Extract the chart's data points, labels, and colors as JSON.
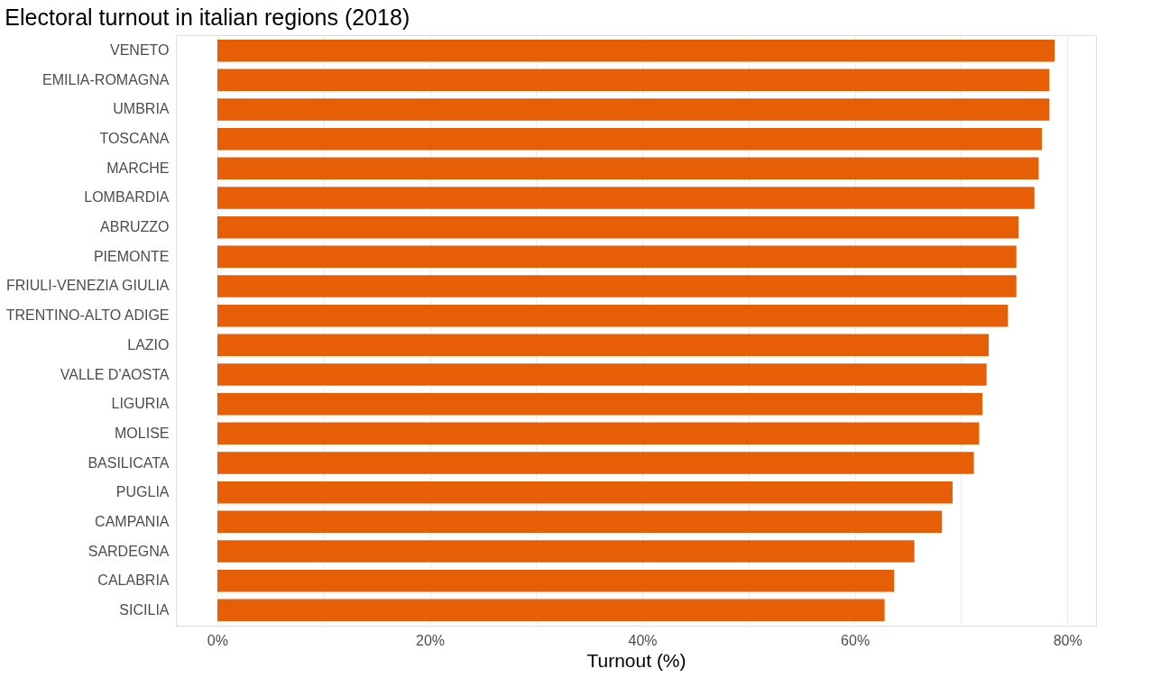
{
  "chart_data": {
    "type": "bar",
    "orientation": "horizontal",
    "title": "Electoral turnout in italian regions (2018)",
    "xlabel": "Turnout (%)",
    "categories": [
      "VENETO",
      "EMILIA-ROMAGNA",
      "UMBRIA",
      "TOSCANA",
      "MARCHE",
      "LOMBARDIA",
      "ABRUZZO",
      "PIEMONTE",
      "FRIULI-VENEZIA GIULIA",
      "TRENTINO-ALTO ADIGE",
      "LAZIO",
      "VALLE D'AOSTA",
      "LIGURIA",
      "MOLISE",
      "BASILICATA",
      "PUGLIA",
      "CAMPANIA",
      "SARDEGNA",
      "CALABRIA",
      "SICILIA"
    ],
    "values": [
      78.8,
      78.3,
      78.3,
      77.6,
      77.3,
      76.9,
      75.4,
      75.2,
      75.2,
      74.4,
      72.6,
      72.4,
      72.0,
      71.7,
      71.2,
      69.2,
      68.2,
      65.6,
      63.7,
      62.8
    ],
    "color": "#e65f07",
    "xlim": [
      -3.9,
      82.7
    ],
    "xticks": [
      {
        "value": 0,
        "label": "0%"
      },
      {
        "value": 10,
        "label": null
      },
      {
        "value": 20,
        "label": "20%"
      },
      {
        "value": 30,
        "label": null
      },
      {
        "value": 40,
        "label": "40%"
      },
      {
        "value": 50,
        "label": null
      },
      {
        "value": 60,
        "label": "60%"
      },
      {
        "value": 70,
        "label": null
      },
      {
        "value": 80,
        "label": "80%"
      }
    ],
    "grid": "x"
  }
}
